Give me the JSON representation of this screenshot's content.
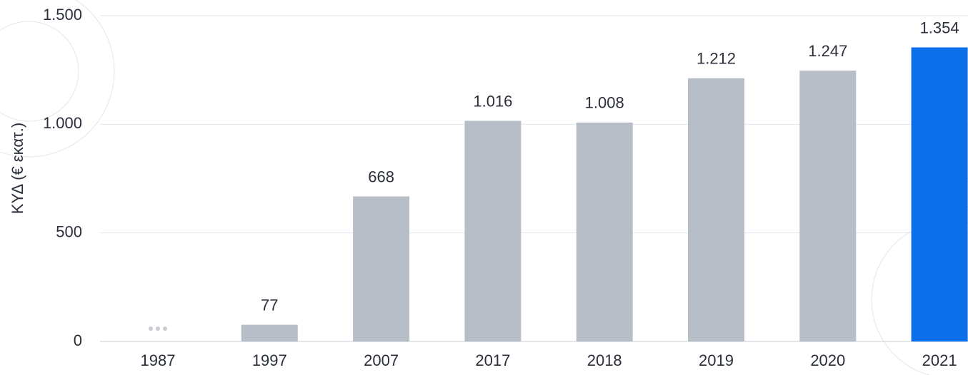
{
  "chart_data": {
    "type": "bar",
    "y_label": "ΚΥΔ (€ εκατ.)",
    "categories": [
      "1987",
      "1997",
      "2007",
      "2017",
      "2018",
      "2019",
      "2020",
      "2021"
    ],
    "values": [
      null,
      77,
      668,
      1016,
      1008,
      1212,
      1247,
      1354
    ],
    "value_labels": [
      null,
      "77",
      "668",
      "1.016",
      "1.008",
      "1.212",
      "1.247",
      "1.354"
    ],
    "colors": [
      "#b8bec8",
      "#b8bec8",
      "#b8bec8",
      "#b8bec8",
      "#b8bec8",
      "#b8bec8",
      "#b8bec8",
      "#0a6fe8"
    ],
    "ylim": [
      0,
      1500
    ],
    "yticks": [
      0,
      500,
      {
        "value": 1000,
        "label": "1.000"
      },
      {
        "value": 1500,
        "label": "1.500"
      }
    ],
    "grid": true
  }
}
